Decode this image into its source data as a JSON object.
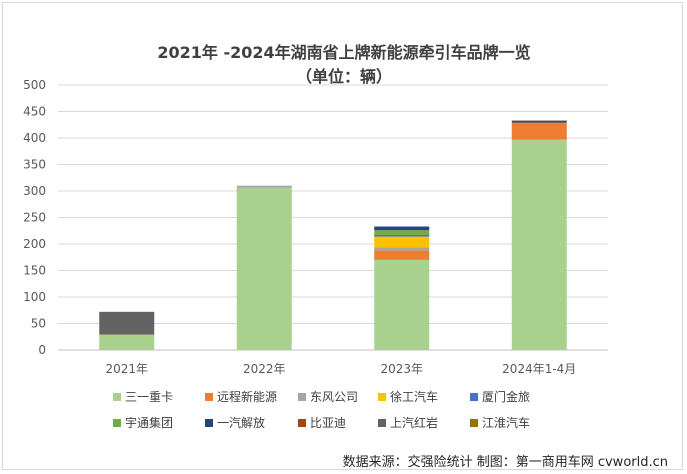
{
  "chart_data": {
    "type": "bar",
    "stacked": true,
    "title": "2021年 -2024年湖南省上牌新能源牵引车品牌一览",
    "subtitle": "（单位：辆）",
    "categories": [
      "2021年",
      "2022年",
      "2023年",
      "2024年1-4月"
    ],
    "ylim": [
      0,
      500
    ],
    "yticks": [
      0,
      50,
      100,
      150,
      200,
      250,
      300,
      350,
      400,
      450,
      500
    ],
    "grid": true,
    "legend_position": "bottom",
    "series": [
      {
        "name": "三一重卡",
        "color": "#a9d18e",
        "values": [
          29,
          306,
          170,
          397
        ]
      },
      {
        "name": "远程新能源",
        "color": "#ed7d31",
        "values": [
          0,
          0,
          18,
          32
        ]
      },
      {
        "name": "东风公司",
        "color": "#a5a5a5",
        "values": [
          0,
          4,
          6,
          0
        ]
      },
      {
        "name": "徐工汽车",
        "color": "#ffc000",
        "values": [
          0,
          0,
          20,
          0
        ]
      },
      {
        "name": "厦门金旅",
        "color": "#4472c4",
        "values": [
          0,
          0,
          3,
          0
        ]
      },
      {
        "name": "宇通集团",
        "color": "#70ad47",
        "values": [
          0,
          0,
          9,
          0
        ]
      },
      {
        "name": "一汽解放",
        "color": "#264478",
        "values": [
          0,
          0,
          7,
          3
        ]
      },
      {
        "name": "比亚迪",
        "color": "#9e480e",
        "values": [
          0,
          0,
          0,
          0
        ]
      },
      {
        "name": "上汽红岩",
        "color": "#636363",
        "values": [
          43,
          0,
          0,
          1
        ]
      },
      {
        "name": "江淮汽车",
        "color": "#997300",
        "values": [
          0,
          0,
          0,
          0
        ]
      }
    ]
  },
  "footer": {
    "source": "数据来源：交强险统计  制图：第一商用车网 cvworld.cn"
  }
}
